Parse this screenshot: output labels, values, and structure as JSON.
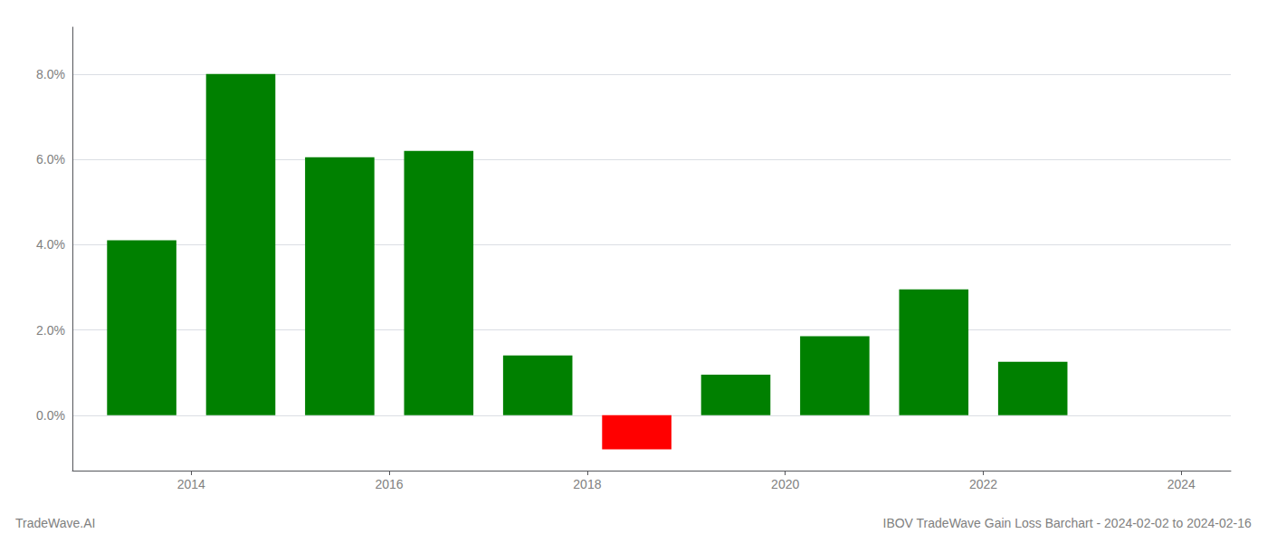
{
  "chart_data": {
    "type": "bar",
    "title": "IBOV TradeWave Gain Loss Barchart - 2024-02-02 to 2024-02-16",
    "annotations": [
      "TradeWave.AI"
    ],
    "x": [
      2013.5,
      2014.5,
      2015.5,
      2016.5,
      2017.5,
      2018.5,
      2019.5,
      2020.5,
      2021.5,
      2022.5
    ],
    "values": [
      0.041,
      0.08,
      0.0605,
      0.062,
      0.014,
      -0.008,
      0.0095,
      0.0185,
      0.0295,
      0.0125
    ],
    "colors": [
      "#008000",
      "#008000",
      "#008000",
      "#008000",
      "#008000",
      "#ff0000",
      "#008000",
      "#008000",
      "#008000",
      "#008000"
    ],
    "xlim": [
      2012.8,
      2024.5
    ],
    "xticks": [
      2014,
      2016,
      2018,
      2020,
      2022,
      2024
    ],
    "ylim": [
      -0.013,
      0.091
    ],
    "yticks": [
      {
        "value": 0.0,
        "label": "0.0%"
      },
      {
        "value": 0.02,
        "label": "2.0%"
      },
      {
        "value": 0.04,
        "label": "4.0%"
      },
      {
        "value": 0.06,
        "label": "6.0%"
      },
      {
        "value": 0.08,
        "label": "8.0%"
      }
    ],
    "grid": true
  }
}
